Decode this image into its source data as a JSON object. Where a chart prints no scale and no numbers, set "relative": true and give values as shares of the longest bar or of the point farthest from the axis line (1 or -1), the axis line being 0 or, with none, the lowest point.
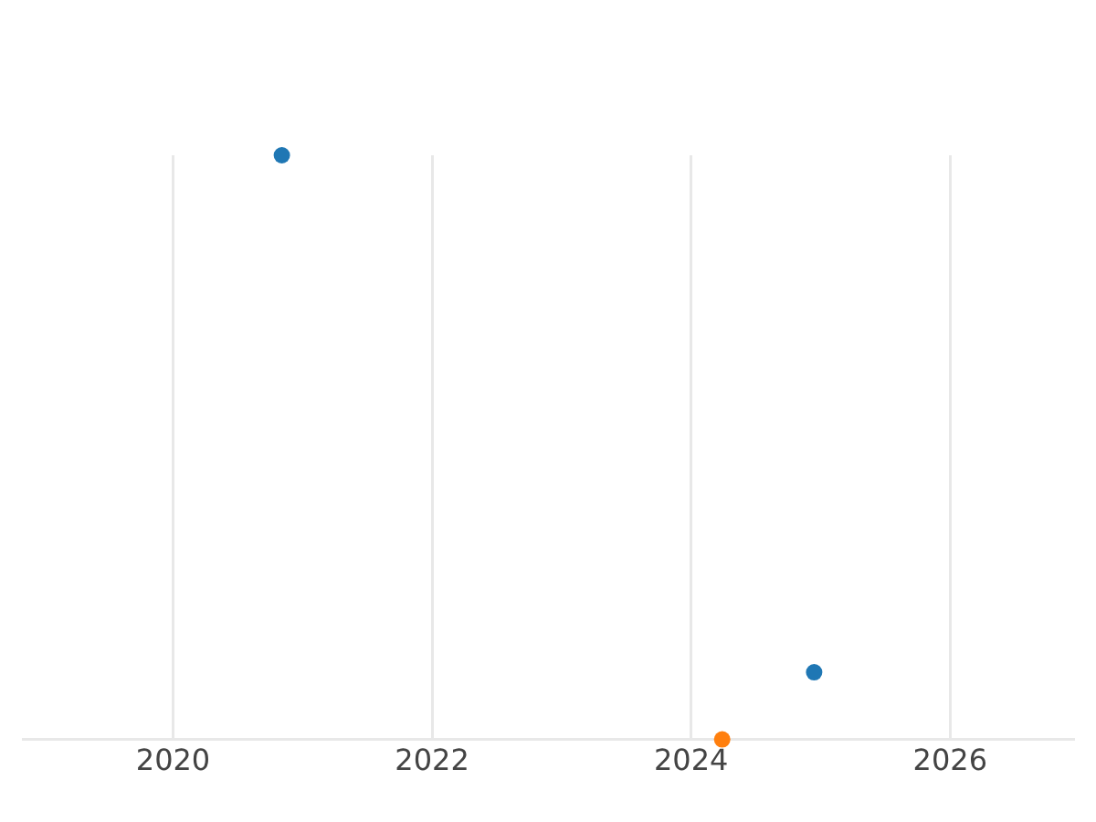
{
  "chart_data": {
    "type": "scatter",
    "relative": true,
    "xlim": [
      2018.84,
      2026.95
    ],
    "xticks": [
      2020,
      2022,
      2024,
      2026
    ],
    "series": [
      {
        "color": "#1f77b4",
        "x": [
          2020.84,
          2024.95
        ],
        "values": [
          1,
          0.115
        ]
      },
      {
        "color": "#ff7f0e",
        "x": [
          2024.24
        ],
        "values": [
          0
        ]
      }
    ],
    "grid": "x",
    "marker": "circle"
  }
}
